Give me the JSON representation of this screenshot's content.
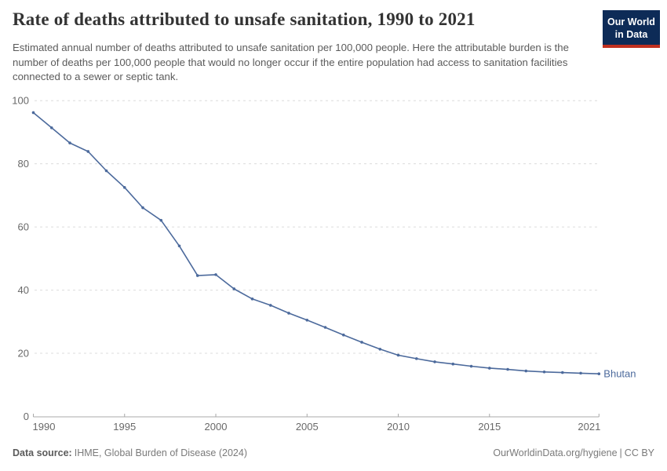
{
  "header": {
    "title": "Rate of deaths attributed to unsafe sanitation, 1990 to 2021",
    "subtitle": "Estimated annual number of deaths attributed to unsafe sanitation per 100,000 people. Here the attributable burden is the number of deaths per 100,000 people that would no longer occur if the entire population had access to sanitation facilities connected to a sewer or septic tank."
  },
  "logo": {
    "line1": "Our World",
    "line2": "in Data",
    "bg_color": "#0d2b57",
    "stripe_color": "#c0301f"
  },
  "chart_data": {
    "type": "line",
    "title": "Rate of deaths attributed to unsafe sanitation, 1990 to 2021",
    "xlabel": "",
    "ylabel": "",
    "x": [
      1990,
      1991,
      1992,
      1993,
      1994,
      1995,
      1996,
      1997,
      1998,
      1999,
      2000,
      2001,
      2002,
      2003,
      2004,
      2005,
      2006,
      2007,
      2008,
      2009,
      2010,
      2011,
      2012,
      2013,
      2014,
      2015,
      2016,
      2017,
      2018,
      2019,
      2020,
      2021
    ],
    "series": [
      {
        "name": "Bhutan",
        "values": [
          96.2,
          91.4,
          86.6,
          83.9,
          77.8,
          72.5,
          66.1,
          62.1,
          54.0,
          44.6,
          44.9,
          40.4,
          37.2,
          35.2,
          32.7,
          30.5,
          28.2,
          25.8,
          23.5,
          21.3,
          19.4,
          18.3,
          17.3,
          16.6,
          15.9,
          15.3,
          14.9,
          14.4,
          14.1,
          13.9,
          13.7,
          13.5
        ]
      }
    ],
    "xlim": [
      1990,
      2021
    ],
    "ylim": [
      0,
      100
    ],
    "yticks": [
      0,
      20,
      40,
      60,
      80,
      100
    ],
    "xticks": [
      1990,
      1995,
      2000,
      2005,
      2010,
      2015,
      2021
    ],
    "grid": "horizontal-dashed",
    "legend_position": "end-of-line-label",
    "colors": {
      "line": "#4C6A9C",
      "grid": "#dcdcdc",
      "axis": "#a8a8a8",
      "tick_label": "#696969"
    }
  },
  "footer": {
    "source_label": "Data source:",
    "source_text": "IHME, Global Burden of Disease (2024)",
    "url": "OurWorldinData.org/hygiene",
    "separator": "|",
    "license": "CC BY"
  }
}
